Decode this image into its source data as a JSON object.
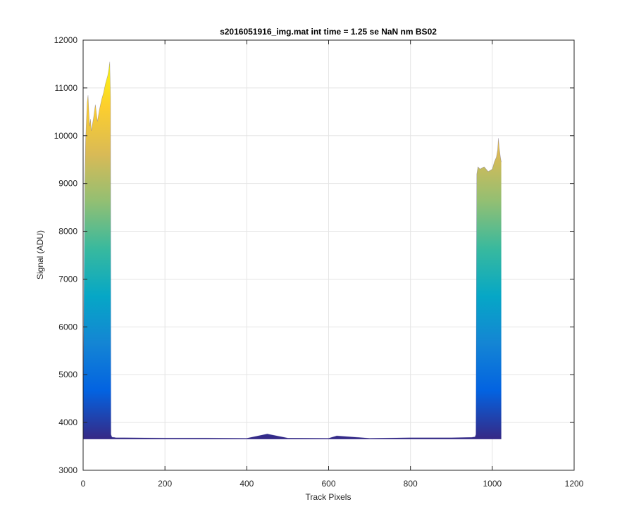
{
  "chart_data": {
    "type": "area",
    "title": "s2016051916_img.mat int time = 1.25 se  NaN nm BS02",
    "xlabel": "Track Pixels",
    "ylabel": "Signal (ADU)",
    "xlim": [
      0,
      1200
    ],
    "ylim": [
      3000,
      12000
    ],
    "xticks": [
      "0",
      "200",
      "400",
      "600",
      "800",
      "1000",
      "1200"
    ],
    "yticks": [
      "3000",
      "4000",
      "5000",
      "6000",
      "7000",
      "8000",
      "9000",
      "10000",
      "11000",
      "12000"
    ],
    "grid": true,
    "colormap": [
      "#352a87",
      "#0363e1",
      "#1485d4",
      "#06a7c6",
      "#38b99e",
      "#92bf73",
      "#d9ba56",
      "#fcce2e",
      "#f9fb0e"
    ],
    "baseline": 3650,
    "series": [
      {
        "x": [
          0,
          2,
          4,
          6,
          8,
          10,
          12,
          14,
          16,
          18,
          20,
          25,
          30,
          35,
          40,
          45,
          50,
          55,
          60,
          63,
          65,
          67,
          68,
          70,
          72,
          75,
          80,
          100,
          200,
          300,
          400,
          450,
          500,
          600,
          620,
          700,
          800,
          900,
          950,
          958,
          960,
          962,
          965,
          970,
          980,
          990,
          1000,
          1005,
          1010,
          1013,
          1015,
          1017,
          1020,
          1022
        ],
        "y": [
          3700,
          6500,
          9000,
          9900,
          10300,
          10700,
          10850,
          10500,
          10200,
          10350,
          10100,
          10350,
          10650,
          10300,
          10550,
          10750,
          10900,
          11100,
          11250,
          11400,
          11550,
          10800,
          3750,
          3700,
          3690,
          3690,
          3680,
          3680,
          3675,
          3675,
          3670,
          3760,
          3675,
          3670,
          3720,
          3670,
          3680,
          3680,
          3690,
          3700,
          3750,
          9200,
          9350,
          9300,
          9350,
          9250,
          9300,
          9450,
          9550,
          9700,
          9950,
          9750,
          9550,
          9450
        ]
      }
    ]
  }
}
